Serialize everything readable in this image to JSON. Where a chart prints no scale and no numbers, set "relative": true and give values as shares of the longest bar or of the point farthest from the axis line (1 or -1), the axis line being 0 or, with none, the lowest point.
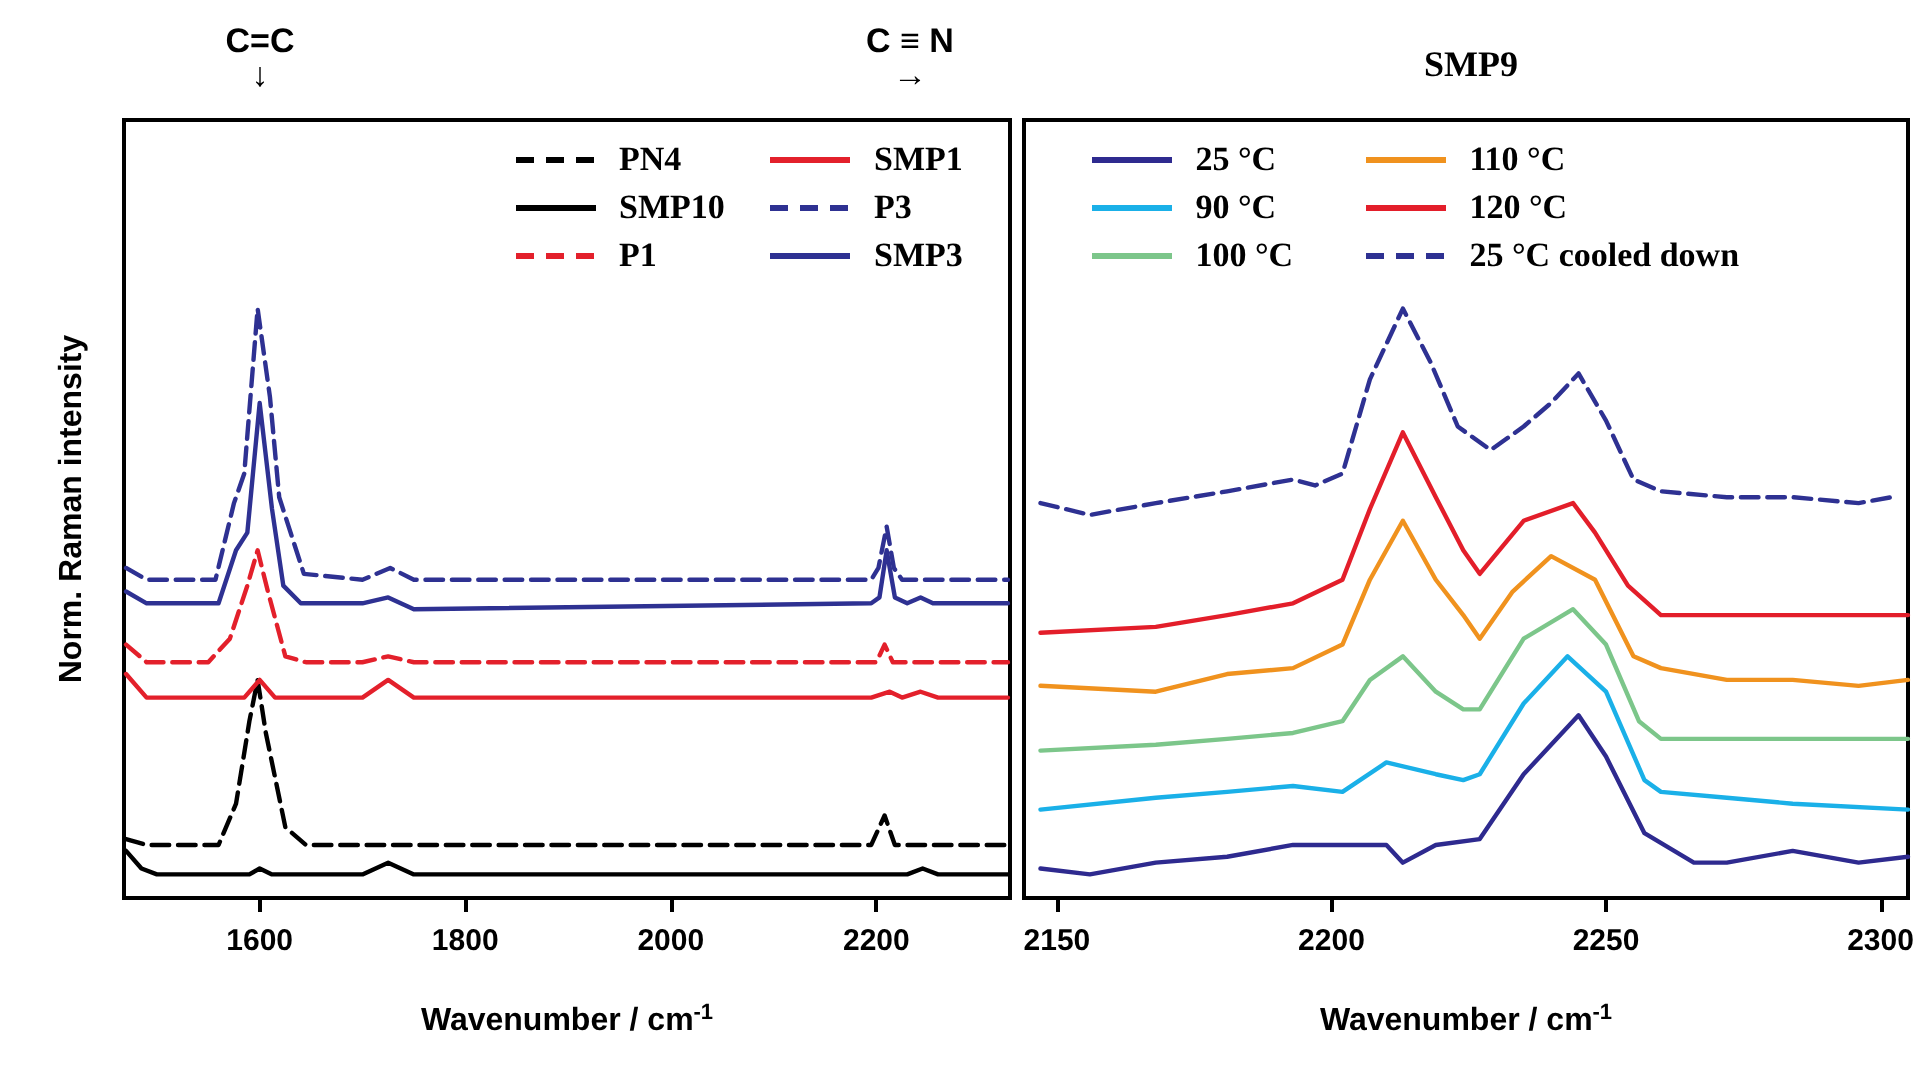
{
  "chart_data": [
    {
      "type": "line",
      "relative": true,
      "xlabel": "Wavenumber / cm$^{-1}$",
      "ylabel": "Norm. Raman intensity",
      "xlim": [
        1468,
        2330
      ],
      "xticks": [
        1600,
        1800,
        2000,
        2200
      ],
      "legend": "top right",
      "marker": "none",
      "annotations": [
        "C=C\n↓",
        "C ≡ N\n→"
      ],
      "series": [
        {
          "name": "PN4",
          "color": "#000000",
          "line_style": "dashed",
          "x": [
            1470,
            1490,
            1560,
            1577,
            1590,
            1598,
            1606,
            1625,
            1645,
            1700,
            1725,
            1750,
            1900,
            2100,
            2195,
            2208,
            2218,
            2230,
            2328
          ],
          "values": [
            0.1,
            0.09,
            0.09,
            0.16,
            0.3,
            0.37,
            0.28,
            0.12,
            0.09,
            0.09,
            0.09,
            0.09,
            0.09,
            0.09,
            0.09,
            0.14,
            0.09,
            0.09,
            0.09
          ]
        },
        {
          "name": "SMP10",
          "color": "#000000",
          "line_style": "solid",
          "x": [
            1470,
            1485,
            1500,
            1590,
            1600,
            1612,
            1700,
            1725,
            1750,
            1900,
            2230,
            2245,
            2260,
            2328
          ],
          "values": [
            0.08,
            0.05,
            0.04,
            0.04,
            0.05,
            0.04,
            0.04,
            0.06,
            0.04,
            0.04,
            0.04,
            0.05,
            0.04,
            0.04
          ]
        },
        {
          "name": "P1",
          "color": "#e3202b",
          "line_style": "dashed",
          "x": [
            1470,
            1490,
            1550,
            1571,
            1588,
            1598,
            1608,
            1625,
            1645,
            1700,
            1725,
            1750,
            2190,
            2200,
            2208,
            2216,
            2230,
            2328
          ],
          "values": [
            0.43,
            0.4,
            0.4,
            0.44,
            0.53,
            0.59,
            0.52,
            0.41,
            0.4,
            0.4,
            0.41,
            0.4,
            0.4,
            0.4,
            0.43,
            0.4,
            0.4,
            0.4
          ]
        },
        {
          "name": "SMP1",
          "color": "#e3202b",
          "line_style": "solid",
          "x": [
            1470,
            1490,
            1585,
            1600,
            1615,
            1700,
            1725,
            1750,
            2195,
            2213,
            2225,
            2243,
            2260,
            2328
          ],
          "values": [
            0.38,
            0.34,
            0.34,
            0.37,
            0.34,
            0.34,
            0.37,
            0.34,
            0.34,
            0.35,
            0.34,
            0.35,
            0.34,
            0.34
          ]
        },
        {
          "name": "P3",
          "color": "#2e3192",
          "line_style": "dashed",
          "x": [
            1470,
            1490,
            1557,
            1575,
            1585,
            1598,
            1610,
            1619,
            1643,
            1700,
            1727,
            1750,
            2195,
            2202,
            2210,
            2217,
            2225,
            2328
          ],
          "values": [
            0.56,
            0.54,
            0.54,
            0.67,
            0.72,
            1.0,
            0.85,
            0.68,
            0.55,
            0.54,
            0.56,
            0.54,
            0.54,
            0.56,
            0.63,
            0.56,
            0.54,
            0.54
          ]
        },
        {
          "name": "SMP3",
          "color": "#2e3192",
          "line_style": "solid",
          "x": [
            1470,
            1490,
            1560,
            1577,
            1588,
            1600,
            1612,
            1623,
            1640,
            1700,
            1725,
            1750,
            2195,
            2203,
            2210,
            2218,
            2230,
            2243,
            2255,
            2328
          ],
          "values": [
            0.52,
            0.5,
            0.5,
            0.59,
            0.62,
            0.84,
            0.66,
            0.53,
            0.5,
            0.5,
            0.51,
            0.49,
            0.5,
            0.51,
            0.59,
            0.51,
            0.5,
            0.51,
            0.5,
            0.5
          ]
        }
      ]
    },
    {
      "type": "line",
      "relative": true,
      "title": "SMP9",
      "xlabel": "Wavenumber / cm$^{-1}$",
      "xlim": [
        2144,
        2305
      ],
      "xticks": [
        2150,
        2200,
        2250,
        2300
      ],
      "legend": "top",
      "marker": "none",
      "series": [
        {
          "name": "25 °C",
          "color": "#2e2a8f",
          "line_style": "solid",
          "x": [
            2147,
            2156,
            2168,
            2181,
            2193,
            2202,
            2210,
            2213,
            2219,
            2227,
            2235,
            2245,
            2250,
            2257,
            2266,
            2272,
            2284,
            2296,
            2305
          ],
          "values": [
            0.05,
            0.04,
            0.06,
            0.07,
            0.09,
            0.09,
            0.09,
            0.06,
            0.09,
            0.1,
            0.21,
            0.31,
            0.24,
            0.11,
            0.06,
            0.06,
            0.08,
            0.06,
            0.07
          ]
        },
        {
          "name": "90 °C",
          "color": "#1ab0e8",
          "line_style": "solid",
          "x": [
            2147,
            2168,
            2181,
            2193,
            2202,
            2210,
            2219,
            2224,
            2227,
            2235,
            2243,
            2250,
            2257,
            2260,
            2272,
            2284,
            2305
          ],
          "values": [
            0.15,
            0.17,
            0.18,
            0.19,
            0.18,
            0.23,
            0.21,
            0.2,
            0.21,
            0.33,
            0.41,
            0.35,
            0.2,
            0.18,
            0.17,
            0.16,
            0.15
          ]
        },
        {
          "name": "100 °C",
          "color": "#7cc68a",
          "line_style": "solid",
          "x": [
            2147,
            2168,
            2181,
            2193,
            2202,
            2207,
            2213,
            2219,
            2224,
            2227,
            2235,
            2244,
            2250,
            2256,
            2260,
            2272,
            2284,
            2305
          ],
          "values": [
            0.25,
            0.26,
            0.27,
            0.28,
            0.3,
            0.37,
            0.41,
            0.35,
            0.32,
            0.32,
            0.44,
            0.49,
            0.43,
            0.3,
            0.27,
            0.27,
            0.27,
            0.27
          ]
        },
        {
          "name": "110 °C",
          "color": "#f0921e",
          "line_style": "solid",
          "x": [
            2147,
            2168,
            2181,
            2193,
            2202,
            2207,
            2213,
            2219,
            2224,
            2227,
            2233,
            2240,
            2248,
            2255,
            2260,
            2272,
            2284,
            2296,
            2305
          ],
          "values": [
            0.36,
            0.35,
            0.38,
            0.39,
            0.43,
            0.54,
            0.64,
            0.54,
            0.48,
            0.44,
            0.52,
            0.58,
            0.54,
            0.41,
            0.39,
            0.37,
            0.37,
            0.36,
            0.37
          ]
        },
        {
          "name": "120 °C",
          "color": "#e31e2a",
          "line_style": "solid",
          "x": [
            2147,
            2168,
            2181,
            2193,
            2202,
            2207,
            2213,
            2219,
            2224,
            2227,
            2235,
            2244,
            2248,
            2254,
            2260,
            2272,
            2284,
            2296,
            2305
          ],
          "values": [
            0.45,
            0.46,
            0.48,
            0.5,
            0.54,
            0.66,
            0.79,
            0.68,
            0.59,
            0.55,
            0.64,
            0.67,
            0.62,
            0.53,
            0.48,
            0.48,
            0.48,
            0.48,
            0.48
          ]
        },
        {
          "name": "25 °C cooled down",
          "color": "#2e3192",
          "line_style": "dashed",
          "x": [
            2147,
            2156,
            2168,
            2181,
            2193,
            2197,
            2202,
            2207,
            2213,
            2218,
            2223,
            2229,
            2235,
            2240,
            2245,
            2250,
            2255,
            2260,
            2272,
            2284,
            2296,
            2302
          ],
          "values": [
            0.67,
            0.65,
            0.67,
            0.69,
            0.71,
            0.7,
            0.72,
            0.88,
            1.0,
            0.91,
            0.8,
            0.76,
            0.8,
            0.84,
            0.89,
            0.81,
            0.71,
            0.69,
            0.68,
            0.68,
            0.67,
            0.68
          ]
        }
      ]
    }
  ]
}
